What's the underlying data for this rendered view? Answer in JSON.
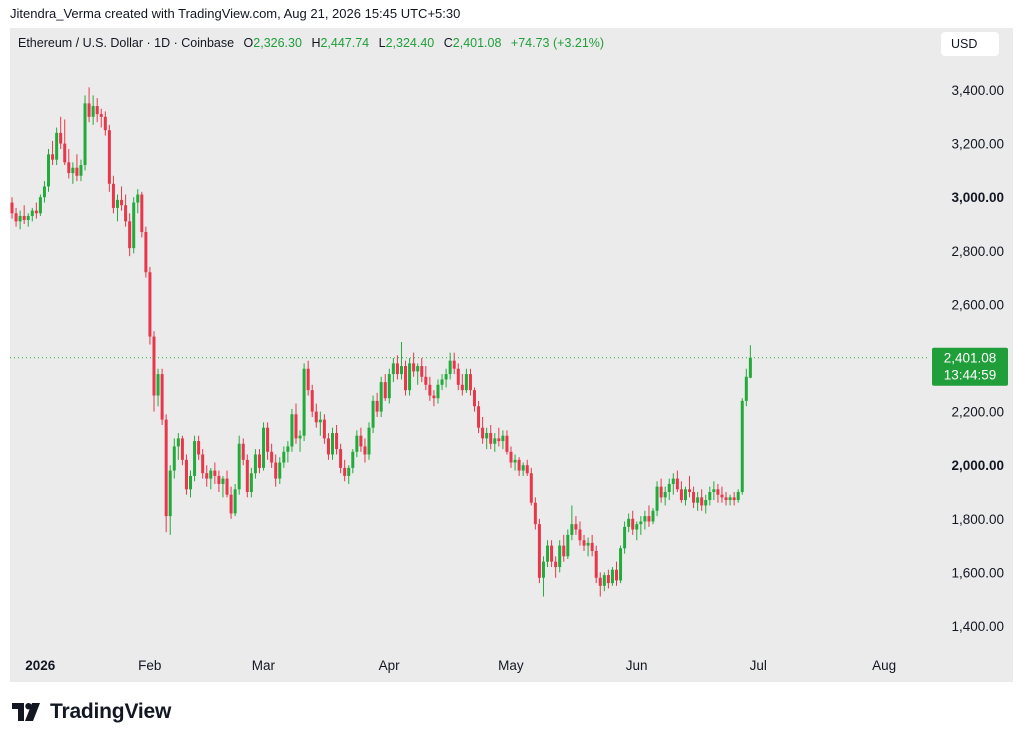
{
  "header": {
    "credit": "Jitendra_Verma created with TradingView.com, Aug 21, 2026 15:45 UTC+5:30"
  },
  "legend": {
    "symbol": "Ethereum / U.S. Dollar · 1D · Coinbase",
    "open_label": "O",
    "open": "2,326.30",
    "high_label": "H",
    "high": "2,447.74",
    "low_label": "L",
    "low": "2,324.40",
    "close_label": "C",
    "close": "2,401.08",
    "change": "+74.73 (+3.21%)"
  },
  "currency_button": {
    "label": "USD"
  },
  "price_tag": {
    "price": "2,401.08",
    "countdown": "13:44:59",
    "color": "#1f9e3a"
  },
  "footer": {
    "brand": "TradingView"
  },
  "colors": {
    "up": "#22ab3a",
    "down": "#e8364a",
    "background": "#ebebeb"
  },
  "chart_data": {
    "type": "candlestick",
    "title": "",
    "xlabel": "",
    "ylabel": "",
    "ylim": [
      1300,
      3500
    ],
    "y_ticks": [
      {
        "value": 3400,
        "label": "3,400.00",
        "bold": false
      },
      {
        "value": 3200,
        "label": "3,200.00",
        "bold": false
      },
      {
        "value": 3000,
        "label": "3,000.00",
        "bold": true
      },
      {
        "value": 2800,
        "label": "2,800.00",
        "bold": false
      },
      {
        "value": 2600,
        "label": "2,600.00",
        "bold": false
      },
      {
        "value": 2200,
        "label": "2,200.00",
        "bold": false
      },
      {
        "value": 2000,
        "label": "2,000.00",
        "bold": true
      },
      {
        "value": 1800,
        "label": "1,800.00",
        "bold": false
      },
      {
        "value": 1600,
        "label": "1,600.00",
        "bold": false
      },
      {
        "value": 1400,
        "label": "1,400.00",
        "bold": false
      }
    ],
    "x_ticks": [
      {
        "day": 4,
        "label": "2026",
        "bold": true
      },
      {
        "day": 31,
        "label": "Feb",
        "bold": false
      },
      {
        "day": 59,
        "label": "Mar",
        "bold": false
      },
      {
        "day": 90,
        "label": "Apr",
        "bold": false
      },
      {
        "day": 120,
        "label": "May",
        "bold": false
      },
      {
        "day": 151,
        "label": "Jun",
        "bold": false
      },
      {
        "day": 181,
        "label": "Jul",
        "bold": false
      },
      {
        "day": 212,
        "label": "Aug",
        "bold": false
      }
    ],
    "last_price": 2401.08,
    "last_price_label": "2,401.08",
    "ohlc": [
      [
        2980,
        3000,
        2920,
        2940
      ],
      [
        2940,
        2960,
        2890,
        2910
      ],
      [
        2910,
        2950,
        2880,
        2930
      ],
      [
        2930,
        2970,
        2900,
        2915
      ],
      [
        2915,
        2940,
        2890,
        2930
      ],
      [
        2930,
        2960,
        2910,
        2950
      ],
      [
        2950,
        2980,
        2920,
        2940
      ],
      [
        2940,
        3010,
        2930,
        3000
      ],
      [
        3000,
        3060,
        2980,
        3040
      ],
      [
        3040,
        3180,
        3020,
        3160
      ],
      [
        3160,
        3210,
        3120,
        3140
      ],
      [
        3140,
        3260,
        3120,
        3240
      ],
      [
        3240,
        3300,
        3180,
        3200
      ],
      [
        3200,
        3290,
        3120,
        3130
      ],
      [
        3130,
        3180,
        3070,
        3090
      ],
      [
        3090,
        3130,
        3050,
        3110
      ],
      [
        3110,
        3160,
        3060,
        3080
      ],
      [
        3080,
        3140,
        3060,
        3120
      ],
      [
        3120,
        3380,
        3100,
        3350
      ],
      [
        3350,
        3410,
        3280,
        3300
      ],
      [
        3300,
        3380,
        3270,
        3340
      ],
      [
        3340,
        3370,
        3280,
        3310
      ],
      [
        3310,
        3330,
        3260,
        3300
      ],
      [
        3300,
        3320,
        3230,
        3250
      ],
      [
        3250,
        3270,
        3020,
        3050
      ],
      [
        3050,
        3080,
        2940,
        2960
      ],
      [
        2960,
        3010,
        2910,
        2990
      ],
      [
        2990,
        3040,
        2950,
        2970
      ],
      [
        2970,
        3010,
        2890,
        2910
      ],
      [
        2910,
        2940,
        2780,
        2810
      ],
      [
        2810,
        3000,
        2790,
        2980
      ],
      [
        2980,
        3030,
        2940,
        3010
      ],
      [
        3010,
        3020,
        2850,
        2870
      ],
      [
        2870,
        2890,
        2700,
        2720
      ],
      [
        2720,
        2740,
        2450,
        2480
      ],
      [
        2480,
        2500,
        2200,
        2260
      ],
      [
        2260,
        2360,
        2220,
        2340
      ],
      [
        2340,
        2360,
        2150,
        2170
      ],
      [
        2170,
        2190,
        1750,
        1810
      ],
      [
        1810,
        2000,
        1740,
        1980
      ],
      [
        1980,
        2100,
        1950,
        2070
      ],
      [
        2070,
        2120,
        2020,
        2100
      ],
      [
        2100,
        2110,
        2000,
        2020
      ],
      [
        2020,
        2040,
        1890,
        1910
      ],
      [
        1910,
        1980,
        1880,
        1960
      ],
      [
        1960,
        2110,
        1940,
        2090
      ],
      [
        2090,
        2110,
        2020,
        2040
      ],
      [
        2040,
        2060,
        1950,
        1970
      ],
      [
        1970,
        2000,
        1920,
        1950
      ],
      [
        1950,
        1990,
        1910,
        1980
      ],
      [
        1980,
        2010,
        1930,
        1960
      ],
      [
        1960,
        1980,
        1900,
        1930
      ],
      [
        1930,
        1960,
        1880,
        1950
      ],
      [
        1950,
        1980,
        1880,
        1890
      ],
      [
        1890,
        1920,
        1800,
        1820
      ],
      [
        1820,
        1930,
        1810,
        1910
      ],
      [
        1910,
        2110,
        1890,
        2080
      ],
      [
        2080,
        2100,
        2000,
        2020
      ],
      [
        2020,
        2040,
        1880,
        1900
      ],
      [
        1900,
        1990,
        1880,
        1970
      ],
      [
        1970,
        2060,
        1950,
        2040
      ],
      [
        2040,
        2060,
        1970,
        1990
      ],
      [
        1990,
        2160,
        1980,
        2140
      ],
      [
        2140,
        2160,
        2020,
        2050
      ],
      [
        2050,
        2080,
        1990,
        2010
      ],
      [
        2010,
        2040,
        1920,
        1950
      ],
      [
        1950,
        2030,
        1930,
        2010
      ],
      [
        2010,
        2070,
        1990,
        2050
      ],
      [
        2050,
        2090,
        2010,
        2070
      ],
      [
        2070,
        2210,
        2050,
        2190
      ],
      [
        2190,
        2230,
        2080,
        2100
      ],
      [
        2100,
        2130,
        2050,
        2110
      ],
      [
        2110,
        2380,
        2090,
        2360
      ],
      [
        2360,
        2390,
        2260,
        2280
      ],
      [
        2280,
        2300,
        2180,
        2200
      ],
      [
        2200,
        2230,
        2140,
        2160
      ],
      [
        2160,
        2200,
        2110,
        2170
      ],
      [
        2170,
        2190,
        2080,
        2100
      ],
      [
        2100,
        2120,
        2020,
        2040
      ],
      [
        2040,
        2140,
        2020,
        2120
      ],
      [
        2120,
        2150,
        2040,
        2060
      ],
      [
        2060,
        2080,
        1970,
        1990
      ],
      [
        1990,
        2020,
        1940,
        1960
      ],
      [
        1960,
        2000,
        1930,
        1990
      ],
      [
        1990,
        2060,
        1970,
        2050
      ],
      [
        2050,
        2130,
        2030,
        2110
      ],
      [
        2110,
        2140,
        2050,
        2070
      ],
      [
        2070,
        2100,
        2010,
        2040
      ],
      [
        2040,
        2160,
        2020,
        2140
      ],
      [
        2140,
        2260,
        2120,
        2240
      ],
      [
        2240,
        2270,
        2180,
        2200
      ],
      [
        2200,
        2330,
        2180,
        2310
      ],
      [
        2310,
        2340,
        2240,
        2250
      ],
      [
        2250,
        2360,
        2230,
        2340
      ],
      [
        2340,
        2400,
        2310,
        2380
      ],
      [
        2380,
        2410,
        2320,
        2340
      ],
      [
        2340,
        2460,
        2320,
        2370
      ],
      [
        2370,
        2390,
        2260,
        2280
      ],
      [
        2280,
        2400,
        2260,
        2380
      ],
      [
        2380,
        2420,
        2330,
        2350
      ],
      [
        2350,
        2380,
        2300,
        2370
      ],
      [
        2370,
        2400,
        2310,
        2330
      ],
      [
        2330,
        2370,
        2280,
        2300
      ],
      [
        2300,
        2330,
        2240,
        2260
      ],
      [
        2260,
        2280,
        2220,
        2250
      ],
      [
        2250,
        2320,
        2230,
        2300
      ],
      [
        2300,
        2340,
        2280,
        2320
      ],
      [
        2320,
        2360,
        2290,
        2340
      ],
      [
        2340,
        2420,
        2320,
        2390
      ],
      [
        2390,
        2420,
        2340,
        2360
      ],
      [
        2360,
        2380,
        2280,
        2300
      ],
      [
        2300,
        2340,
        2260,
        2280
      ],
      [
        2280,
        2360,
        2270,
        2340
      ],
      [
        2340,
        2360,
        2260,
        2280
      ],
      [
        2280,
        2290,
        2200,
        2220
      ],
      [
        2220,
        2240,
        2120,
        2140
      ],
      [
        2140,
        2180,
        2080,
        2100
      ],
      [
        2100,
        2140,
        2060,
        2120
      ],
      [
        2120,
        2150,
        2060,
        2080
      ],
      [
        2080,
        2120,
        2050,
        2100
      ],
      [
        2100,
        2140,
        2070,
        2090
      ],
      [
        2090,
        2130,
        2060,
        2110
      ],
      [
        2110,
        2130,
        2040,
        2050
      ],
      [
        2050,
        2070,
        1990,
        2010
      ],
      [
        2010,
        2040,
        1980,
        2020
      ],
      [
        2020,
        2030,
        1960,
        1980
      ],
      [
        1980,
        2010,
        1960,
        2000
      ],
      [
        2000,
        2020,
        1960,
        1970
      ],
      [
        1970,
        1990,
        1850,
        1860
      ],
      [
        1860,
        1880,
        1760,
        1780
      ],
      [
        1780,
        1800,
        1560,
        1580
      ],
      [
        1580,
        1660,
        1510,
        1640
      ],
      [
        1640,
        1720,
        1620,
        1700
      ],
      [
        1700,
        1720,
        1620,
        1640
      ],
      [
        1640,
        1660,
        1580,
        1620
      ],
      [
        1620,
        1720,
        1600,
        1700
      ],
      [
        1700,
        1740,
        1640,
        1660
      ],
      [
        1660,
        1760,
        1650,
        1740
      ],
      [
        1740,
        1850,
        1720,
        1780
      ],
      [
        1780,
        1810,
        1740,
        1760
      ],
      [
        1760,
        1790,
        1700,
        1720
      ],
      [
        1720,
        1740,
        1680,
        1700
      ],
      [
        1700,
        1730,
        1660,
        1710
      ],
      [
        1710,
        1740,
        1660,
        1680
      ],
      [
        1680,
        1700,
        1560,
        1580
      ],
      [
        1580,
        1600,
        1510,
        1550
      ],
      [
        1550,
        1600,
        1530,
        1590
      ],
      [
        1590,
        1610,
        1540,
        1560
      ],
      [
        1560,
        1620,
        1550,
        1610
      ],
      [
        1610,
        1640,
        1550,
        1570
      ],
      [
        1570,
        1700,
        1560,
        1690
      ],
      [
        1690,
        1790,
        1670,
        1770
      ],
      [
        1770,
        1820,
        1750,
        1800
      ],
      [
        1800,
        1830,
        1740,
        1760
      ],
      [
        1760,
        1790,
        1720,
        1780
      ],
      [
        1780,
        1810,
        1740,
        1790
      ],
      [
        1790,
        1830,
        1760,
        1810
      ],
      [
        1810,
        1850,
        1770,
        1790
      ],
      [
        1790,
        1840,
        1780,
        1830
      ],
      [
        1830,
        1940,
        1810,
        1920
      ],
      [
        1920,
        1950,
        1860,
        1880
      ],
      [
        1880,
        1920,
        1850,
        1900
      ],
      [
        1900,
        1950,
        1870,
        1930
      ],
      [
        1930,
        1970,
        1890,
        1950
      ],
      [
        1950,
        1980,
        1900,
        1910
      ],
      [
        1910,
        1940,
        1860,
        1870
      ],
      [
        1870,
        1920,
        1850,
        1910
      ],
      [
        1910,
        1960,
        1880,
        1900
      ],
      [
        1900,
        1920,
        1840,
        1860
      ],
      [
        1860,
        1900,
        1830,
        1880
      ],
      [
        1880,
        1910,
        1830,
        1850
      ],
      [
        1850,
        1890,
        1820,
        1870
      ],
      [
        1870,
        1920,
        1850,
        1900
      ],
      [
        1900,
        1940,
        1870,
        1910
      ],
      [
        1910,
        1930,
        1860,
        1890
      ],
      [
        1890,
        1920,
        1860,
        1880
      ],
      [
        1880,
        1900,
        1850,
        1870
      ],
      [
        1870,
        1890,
        1850,
        1880
      ],
      [
        1880,
        1900,
        1850,
        1870
      ],
      [
        1870,
        1910,
        1860,
        1900
      ],
      [
        1900,
        2250,
        1890,
        2240
      ],
      [
        2240,
        2360,
        2220,
        2330
      ],
      [
        2326.3,
        2447.74,
        2324.4,
        2401.08
      ]
    ]
  }
}
